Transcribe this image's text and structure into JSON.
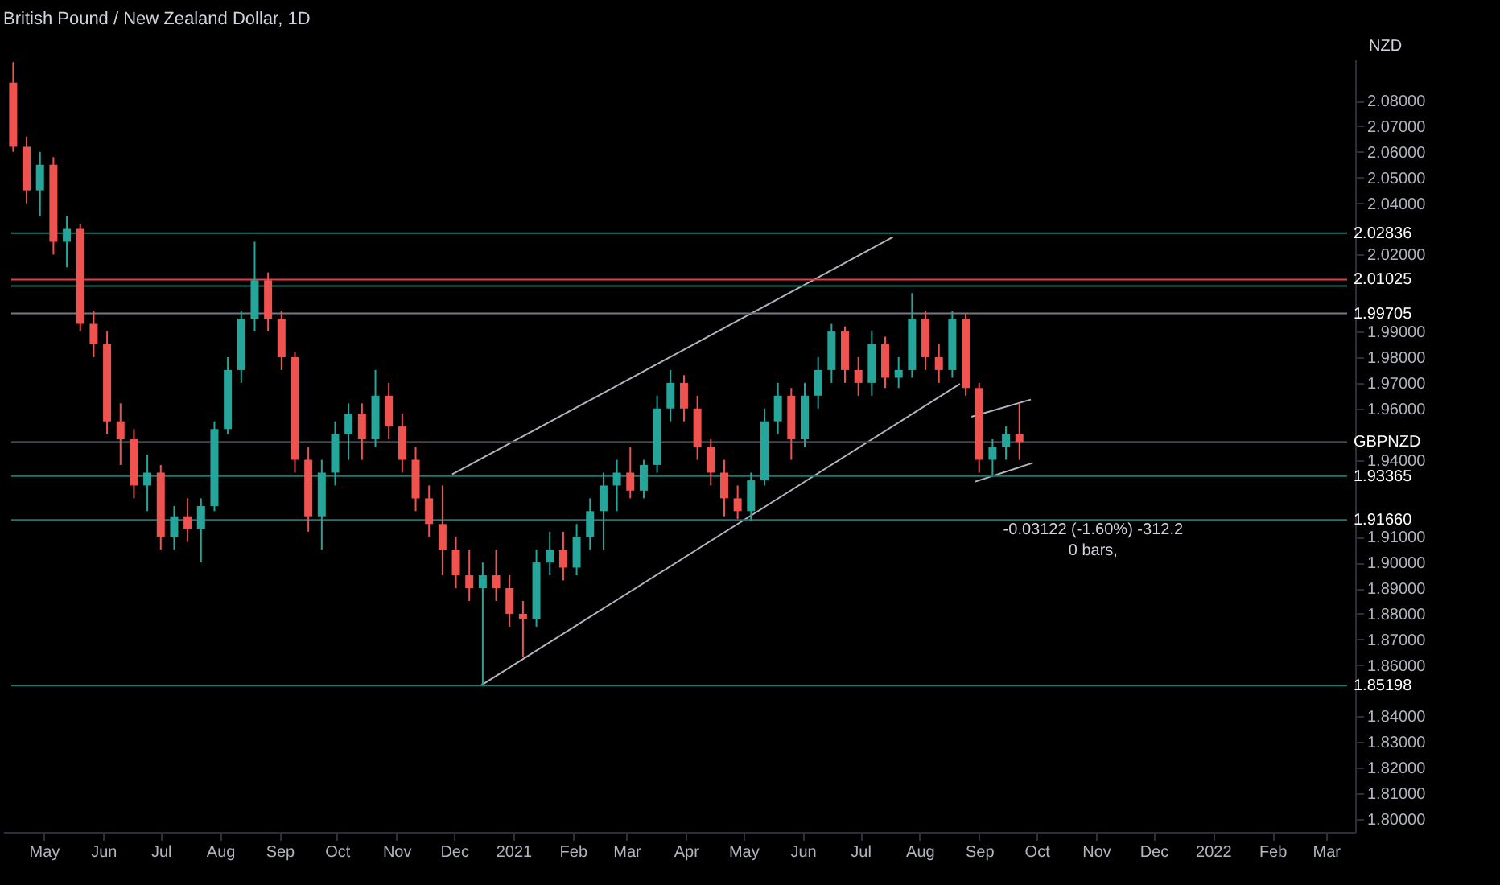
{
  "chart_data": {
    "type": "candlestick",
    "title": "British Pound / New Zealand Dollar, 1D",
    "ylabel": "NZD",
    "x": [
      "2020-04-15",
      "2020-04-22",
      "2020-04-29",
      "2020-05-06",
      "2020-05-13",
      "2020-05-20",
      "2020-05-27",
      "2020-06-03",
      "2020-06-10",
      "2020-06-17",
      "2020-06-24",
      "2020-07-01",
      "2020-07-08",
      "2020-07-15",
      "2020-07-22",
      "2020-07-29",
      "2020-08-05",
      "2020-08-12",
      "2020-08-19",
      "2020-08-26",
      "2020-09-02",
      "2020-09-09",
      "2020-09-16",
      "2020-09-23",
      "2020-09-30",
      "2020-10-07",
      "2020-10-14",
      "2020-10-21",
      "2020-10-28",
      "2020-11-04",
      "2020-11-11",
      "2020-11-18",
      "2020-11-25",
      "2020-12-02",
      "2020-12-09",
      "2020-12-16",
      "2020-12-23",
      "2020-12-30",
      "2021-01-06",
      "2021-01-13",
      "2021-01-20",
      "2021-01-27",
      "2021-02-03",
      "2021-02-10",
      "2021-02-17",
      "2021-02-24",
      "2021-03-03",
      "2021-03-10",
      "2021-03-17",
      "2021-03-24",
      "2021-03-31",
      "2021-04-07",
      "2021-04-14",
      "2021-04-21",
      "2021-04-28",
      "2021-05-05",
      "2021-05-12",
      "2021-05-19",
      "2021-05-26",
      "2021-06-02",
      "2021-06-09",
      "2021-06-16",
      "2021-06-23",
      "2021-06-30",
      "2021-07-07",
      "2021-07-14",
      "2021-07-21",
      "2021-07-28",
      "2021-08-04",
      "2021-08-11",
      "2021-08-18",
      "2021-08-25",
      "2021-09-01",
      "2021-09-08",
      "2021-09-15",
      "2021-09-22"
    ],
    "ohlc": [
      [
        2.087,
        2.095,
        2.06,
        2.062
      ],
      [
        2.062,
        2.066,
        2.04,
        2.045
      ],
      [
        2.045,
        2.06,
        2.035,
        2.055
      ],
      [
        2.055,
        2.058,
        2.02,
        2.025
      ],
      [
        2.025,
        2.035,
        2.015,
        2.03
      ],
      [
        2.03,
        2.032,
        1.99,
        1.993
      ],
      [
        1.993,
        1.998,
        1.98,
        1.985
      ],
      [
        1.985,
        1.99,
        1.95,
        1.955
      ],
      [
        1.955,
        1.962,
        1.938,
        1.948
      ],
      [
        1.948,
        1.952,
        1.925,
        1.93
      ],
      [
        1.93,
        1.942,
        1.92,
        1.935
      ],
      [
        1.935,
        1.938,
        1.905,
        1.91
      ],
      [
        1.91,
        1.922,
        1.905,
        1.918
      ],
      [
        1.918,
        1.925,
        1.908,
        1.913
      ],
      [
        1.913,
        1.925,
        1.9,
        1.922
      ],
      [
        1.922,
        1.955,
        1.92,
        1.952
      ],
      [
        1.952,
        1.98,
        1.95,
        1.975
      ],
      [
        1.975,
        1.998,
        1.97,
        1.995
      ],
      [
        1.995,
        2.025,
        1.99,
        2.01
      ],
      [
        2.01,
        2.013,
        1.99,
        1.995
      ],
      [
        1.995,
        1.998,
        1.975,
        1.98
      ],
      [
        1.98,
        1.982,
        1.935,
        1.94
      ],
      [
        1.94,
        1.945,
        1.912,
        1.918
      ],
      [
        1.918,
        1.94,
        1.905,
        1.935
      ],
      [
        1.935,
        1.955,
        1.93,
        1.95
      ],
      [
        1.95,
        1.962,
        1.94,
        1.958
      ],
      [
        1.958,
        1.962,
        1.94,
        1.948
      ],
      [
        1.948,
        1.975,
        1.945,
        1.965
      ],
      [
        1.965,
        1.97,
        1.948,
        1.953
      ],
      [
        1.953,
        1.958,
        1.935,
        1.94
      ],
      [
        1.94,
        1.945,
        1.92,
        1.925
      ],
      [
        1.925,
        1.93,
        1.91,
        1.915
      ],
      [
        1.915,
        1.93,
        1.895,
        1.905
      ],
      [
        1.905,
        1.91,
        1.89,
        1.895
      ],
      [
        1.895,
        1.905,
        1.885,
        1.89
      ],
      [
        1.89,
        1.9,
        1.852,
        1.895
      ],
      [
        1.895,
        1.905,
        1.885,
        1.89
      ],
      [
        1.89,
        1.895,
        1.875,
        1.88
      ],
      [
        1.88,
        1.885,
        1.863,
        1.878
      ],
      [
        1.878,
        1.905,
        1.875,
        1.9
      ],
      [
        1.9,
        1.912,
        1.895,
        1.905
      ],
      [
        1.905,
        1.912,
        1.893,
        1.898
      ],
      [
        1.898,
        1.915,
        1.895,
        1.91
      ],
      [
        1.91,
        1.925,
        1.905,
        1.92
      ],
      [
        1.92,
        1.935,
        1.905,
        1.93
      ],
      [
        1.93,
        1.94,
        1.92,
        1.935
      ],
      [
        1.935,
        1.945,
        1.925,
        1.928
      ],
      [
        1.928,
        1.94,
        1.925,
        1.938
      ],
      [
        1.938,
        1.965,
        1.935,
        1.96
      ],
      [
        1.96,
        1.975,
        1.955,
        1.97
      ],
      [
        1.97,
        1.973,
        1.955,
        1.96
      ],
      [
        1.96,
        1.965,
        1.94,
        1.945
      ],
      [
        1.945,
        1.948,
        1.93,
        1.935
      ],
      [
        1.935,
        1.94,
        1.918,
        1.925
      ],
      [
        1.925,
        1.93,
        1.917,
        1.92
      ],
      [
        1.92,
        1.935,
        1.916,
        1.932
      ],
      [
        1.932,
        1.96,
        1.93,
        1.955
      ],
      [
        1.955,
        1.97,
        1.95,
        1.965
      ],
      [
        1.965,
        1.968,
        1.94,
        1.948
      ],
      [
        1.948,
        1.97,
        1.945,
        1.965
      ],
      [
        1.965,
        1.98,
        1.96,
        1.975
      ],
      [
        1.975,
        1.993,
        1.97,
        1.99
      ],
      [
        1.99,
        1.992,
        1.97,
        1.975
      ],
      [
        1.975,
        1.98,
        1.965,
        1.97
      ],
      [
        1.97,
        1.99,
        1.965,
        1.985
      ],
      [
        1.985,
        1.988,
        1.968,
        1.972
      ],
      [
        1.972,
        1.98,
        1.968,
        1.975
      ],
      [
        1.975,
        2.005,
        1.972,
        1.995
      ],
      [
        1.995,
        1.998,
        1.975,
        1.98
      ],
      [
        1.98,
        1.985,
        1.97,
        1.975
      ],
      [
        1.975,
        1.998,
        1.972,
        1.995
      ],
      [
        1.995,
        1.997,
        1.965,
        1.968
      ],
      [
        1.968,
        1.97,
        1.935,
        1.94
      ],
      [
        1.94,
        1.948,
        1.934,
        1.945
      ],
      [
        1.945,
        1.953,
        1.94,
        1.95
      ],
      [
        1.95,
        1.962,
        1.94,
        1.947
      ]
    ],
    "colors": [
      "#ef5350",
      "#ef5350",
      "#26a69a",
      "#ef5350",
      "#26a69a",
      "#ef5350",
      "#ef5350",
      "#ef5350",
      "#ef5350",
      "#ef5350",
      "#26a69a",
      "#ef5350",
      "#26a69a",
      "#ef5350",
      "#26a69a",
      "#26a69a",
      "#26a69a",
      "#26a69a",
      "#26a69a",
      "#ef5350",
      "#ef5350",
      "#ef5350",
      "#ef5350",
      "#26a69a",
      "#26a69a",
      "#26a69a",
      "#ef5350",
      "#26a69a",
      "#ef5350",
      "#ef5350",
      "#ef5350",
      "#ef5350",
      "#ef5350",
      "#ef5350",
      "#ef5350",
      "#26a69a",
      "#ef5350",
      "#ef5350",
      "#ef5350",
      "#26a69a",
      "#26a69a",
      "#ef5350",
      "#26a69a",
      "#26a69a",
      "#26a69a",
      "#26a69a",
      "#ef5350",
      "#26a69a",
      "#26a69a",
      "#26a69a",
      "#ef5350",
      "#ef5350",
      "#ef5350",
      "#ef5350",
      "#ef5350",
      "#26a69a",
      "#26a69a",
      "#26a69a",
      "#ef5350",
      "#26a69a",
      "#26a69a",
      "#26a69a",
      "#ef5350",
      "#ef5350",
      "#26a69a",
      "#ef5350",
      "#26a69a",
      "#26a69a",
      "#ef5350",
      "#ef5350",
      "#26a69a",
      "#ef5350",
      "#ef5350",
      "#26a69a",
      "#26a69a",
      "#ef5350"
    ],
    "series": [
      {
        "type": "line",
        "color": "#b2b5be",
        "x": [
          "2020-11-30",
          "2021-07-18"
        ],
        "values": [
          1.9343,
          2.0268
        ]
      },
      {
        "type": "line",
        "color": "#b2b5be",
        "x": [
          "2020-12-15",
          "2021-08-22"
        ],
        "values": [
          1.852,
          1.9696
        ]
      },
      {
        "type": "line",
        "color": "#b2b5be",
        "x": [
          "2021-08-28",
          "2021-09-28"
        ],
        "values": [
          1.9568,
          1.9635
        ]
      },
      {
        "type": "line",
        "color": "#b2b5be",
        "x": [
          "2021-08-30",
          "2021-09-29"
        ],
        "values": [
          1.9315,
          1.9388
        ]
      }
    ],
    "xlim": [
      "2020-04-14",
      "2022-03-12"
    ],
    "xticks": [
      {
        "value": "2020-05",
        "label": "May"
      },
      {
        "value": "2020-06",
        "label": "Jun"
      },
      {
        "value": "2020-07",
        "label": "Jul"
      },
      {
        "value": "2020-08",
        "label": "Aug"
      },
      {
        "value": "2020-09",
        "label": "Sep"
      },
      {
        "value": "2020-10",
        "label": "Oct"
      },
      {
        "value": "2020-11",
        "label": "Nov"
      },
      {
        "value": "2020-12",
        "label": "Dec"
      },
      {
        "value": "2021-01",
        "label": "2021"
      },
      {
        "value": "2021-02",
        "label": "Feb"
      },
      {
        "value": "2021-03",
        "label": "Mar"
      },
      {
        "value": "2021-04",
        "label": "Apr"
      },
      {
        "value": "2021-05",
        "label": "May"
      },
      {
        "value": "2021-06",
        "label": "Jun"
      },
      {
        "value": "2021-07",
        "label": "Jul"
      },
      {
        "value": "2021-08",
        "label": "Aug"
      },
      {
        "value": "2021-09",
        "label": "Sep"
      },
      {
        "value": "2021-10",
        "label": "Oct"
      },
      {
        "value": "2021-11",
        "label": "Nov"
      },
      {
        "value": "2021-12",
        "label": "Dec"
      },
      {
        "value": "2022-01",
        "label": "2022"
      },
      {
        "value": "2022-02",
        "label": "Feb"
      },
      {
        "value": "2022-03",
        "label": "Mar"
      }
    ],
    "ylim": [
      1.795,
      2.096
    ],
    "yticks": [
      {
        "value": 1.8,
        "label": "1.80000"
      },
      {
        "value": 1.81,
        "label": "1.81000"
      },
      {
        "value": 1.82,
        "label": "1.82000"
      },
      {
        "value": 1.83,
        "label": "1.83000"
      },
      {
        "value": 1.84,
        "label": "1.84000"
      },
      {
        "value": 1.86,
        "label": "1.86000"
      },
      {
        "value": 1.87,
        "label": "1.87000"
      },
      {
        "value": 1.88,
        "label": "1.88000"
      },
      {
        "value": 1.89,
        "label": "1.89000"
      },
      {
        "value": 1.9,
        "label": "1.90000"
      },
      {
        "value": 1.91,
        "label": "1.91000"
      },
      {
        "value": 1.94,
        "label": "1.94000"
      },
      {
        "value": 1.96,
        "label": "1.96000"
      },
      {
        "value": 1.97,
        "label": "1.97000"
      },
      {
        "value": 1.98,
        "label": "1.98000"
      },
      {
        "value": 1.99,
        "label": "1.99000"
      },
      {
        "value": 2.02,
        "label": "2.02000"
      },
      {
        "value": 2.04,
        "label": "2.04000"
      },
      {
        "value": 2.05,
        "label": "2.05000"
      },
      {
        "value": 2.06,
        "label": "2.06000"
      },
      {
        "value": 2.07,
        "label": "2.07000"
      },
      {
        "value": 2.08,
        "label": "2.08000"
      }
    ],
    "ref_lines": [
      {
        "axis": "y",
        "value": 2.02836,
        "label": "2.02836",
        "color": "#1e7a70"
      },
      {
        "axis": "y",
        "value": 2.0077,
        "color": "#1e7a70"
      },
      {
        "axis": "y",
        "value": 1.9166,
        "label": "1.91660",
        "color": "#1e7a70"
      },
      {
        "axis": "y",
        "value": 1.85198,
        "label": "1.85198",
        "color": "#1e7a70"
      },
      {
        "axis": "y",
        "value": 1.947,
        "label": "GBPNZD",
        "color": "#434651"
      },
      {
        "axis": "y",
        "value": 2.01025,
        "label": "2.01025",
        "color": "#f23645"
      },
      {
        "axis": "y",
        "value": 1.99705,
        "label": "1.99705",
        "color": "#787b86"
      },
      {
        "axis": "y",
        "value": 1.93365,
        "label": "1.93365",
        "color": "#1e7a70"
      }
    ],
    "annotations": [
      "-0.03122 (-1.60%) -312.2",
      "0 bars,"
    ],
    "grid": false
  }
}
